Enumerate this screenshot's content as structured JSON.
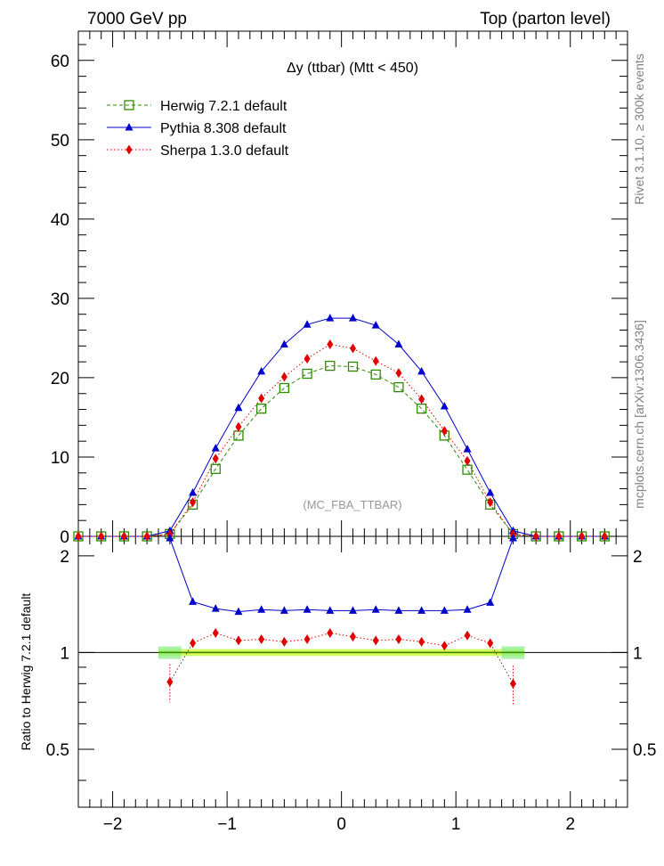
{
  "header": {
    "left": "7000 GeV pp",
    "right": "Top (parton level)"
  },
  "side_labels": {
    "rivet": "Rivet 3.1.10, ≥ 300k events",
    "mcplots": "mcplots.cern.ch [arXiv:1306.3436]"
  },
  "chart_data": [
    {
      "type": "line",
      "title": "Δy (ttbar) (Mtt < 450)",
      "watermark": "(MC_FBA_TTBAR)",
      "xlim": [
        -2.3,
        2.5
      ],
      "ylim": [
        0,
        62
      ],
      "yticks": [
        0,
        10,
        20,
        30,
        40,
        50,
        60
      ],
      "xticks": [
        -2,
        -1,
        0,
        1,
        2
      ],
      "legend_position": "top-left",
      "x": [
        -2.3,
        -2.1,
        -1.9,
        -1.7,
        -1.5,
        -1.3,
        -1.1,
        -0.9,
        -0.7,
        -0.5,
        -0.3,
        -0.1,
        0.1,
        0.3,
        0.5,
        0.7,
        0.9,
        1.1,
        1.3,
        1.5,
        1.7,
        1.9,
        2.1,
        2.3
      ],
      "series": [
        {
          "name": "Herwig 7.2.1 default",
          "color": "#2e8b00",
          "marker": "open-square",
          "line": "dashed",
          "values": [
            0,
            0,
            0,
            0,
            0.3,
            4.0,
            8.5,
            12.7,
            16.1,
            18.7,
            20.5,
            21.5,
            21.4,
            20.4,
            18.8,
            16.1,
            12.7,
            8.4,
            4.0,
            0.3,
            0,
            0,
            0,
            0
          ]
        },
        {
          "name": "Pythia 8.308 default",
          "color": "#0000cc",
          "marker": "filled-triangle",
          "line": "solid",
          "values": [
            0,
            0,
            0,
            0,
            0.7,
            5.5,
            11.1,
            16.2,
            20.8,
            24.2,
            26.7,
            27.5,
            27.5,
            26.6,
            24.2,
            20.8,
            16.4,
            11.0,
            5.5,
            0.7,
            0,
            0,
            0,
            0
          ]
        },
        {
          "name": "Sherpa 1.3.0 default",
          "color": "#e00000",
          "marker": "filled-diamond",
          "line": "dotted",
          "values": [
            0,
            0,
            0,
            0,
            0.25,
            4.3,
            9.8,
            13.8,
            17.4,
            20.1,
            22.4,
            24.2,
            23.7,
            22.1,
            20.6,
            17.3,
            13.3,
            9.5,
            4.3,
            0.25,
            0,
            0,
            0,
            0
          ]
        }
      ]
    },
    {
      "type": "line",
      "ylabel": "Ratio to Herwig 7.2.1 default",
      "xlim": [
        -2.3,
        2.5
      ],
      "ylim": [
        0.33,
        2.3
      ],
      "yticks": [
        0.5,
        1,
        2
      ],
      "xticks": [
        -2,
        -1,
        0,
        1,
        2
      ],
      "x": [
        -1.5,
        -1.3,
        -1.1,
        -0.9,
        -0.7,
        -0.5,
        -0.3,
        -0.1,
        0.1,
        0.3,
        0.5,
        0.7,
        0.9,
        1.1,
        1.3,
        1.5
      ],
      "series": [
        {
          "name": "Pythia 8.308 default",
          "color": "#0000cc",
          "values": [
            2.27,
            1.44,
            1.37,
            1.34,
            1.36,
            1.35,
            1.36,
            1.35,
            1.35,
            1.36,
            1.35,
            1.35,
            1.35,
            1.36,
            1.43,
            2.27
          ]
        },
        {
          "name": "Sherpa 1.3.0 default",
          "color": "#e00000",
          "values": [
            0.81,
            1.07,
            1.15,
            1.09,
            1.1,
            1.08,
            1.1,
            1.15,
            1.12,
            1.09,
            1.1,
            1.08,
            1.05,
            1.13,
            1.07,
            0.8
          ]
        }
      ]
    }
  ]
}
